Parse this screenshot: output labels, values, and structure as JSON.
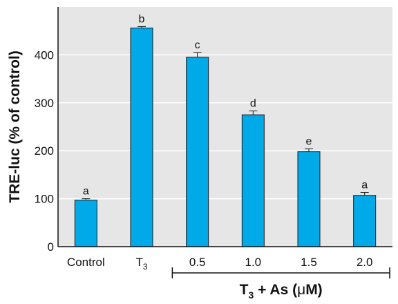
{
  "chart_data": {
    "type": "bar",
    "ylabel": "TRE-luc (% of control)",
    "ylim": [
      0,
      500
    ],
    "yticks": [
      0,
      100,
      200,
      300,
      400
    ],
    "grid": true,
    "categories": [
      {
        "main": "Control",
        "sub": ""
      },
      {
        "main": "T",
        "sub": "3"
      },
      {
        "main": "0.5",
        "sub": ""
      },
      {
        "main": "1.0",
        "sub": ""
      },
      {
        "main": "1.5",
        "sub": ""
      },
      {
        "main": "2.0",
        "sub": ""
      }
    ],
    "values": [
      97,
      456,
      395,
      275,
      198,
      107
    ],
    "errors": [
      3,
      3,
      10,
      8,
      6,
      6
    ],
    "significance_labels": [
      "a",
      "b",
      "c",
      "d",
      "e",
      "a"
    ],
    "group_label": {
      "prefix": "T",
      "sub": "3",
      "suffix": " + As (",
      "greek": "μ",
      "unit": "M)"
    },
    "group_span": [
      2,
      5
    ],
    "colors": {
      "bar": "#00a9e8",
      "bar_edge": "#1a1a1a",
      "grid": "#ffffff",
      "plot_bg": "#e6e6e6",
      "axis": "#111111"
    }
  }
}
